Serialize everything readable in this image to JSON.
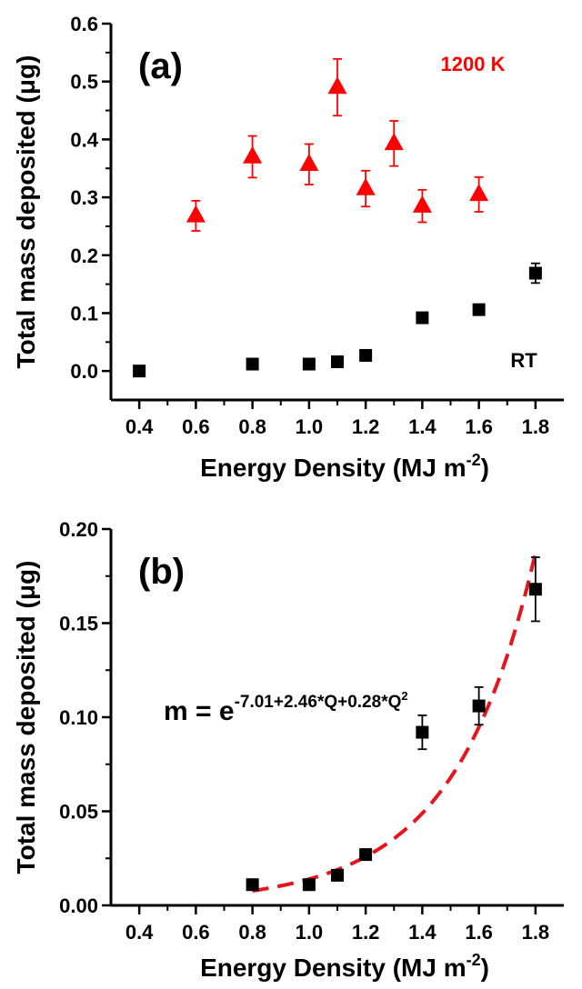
{
  "chart_data": [
    {
      "type": "scatter",
      "panel_label": "(a)",
      "xlabel": "Energy Density (MJ m",
      "xlabel_sup": "-2",
      "xlabel_end": ")",
      "ylabel": "Total mass deposited (μg)",
      "xlim": [
        0.3,
        1.9
      ],
      "ylim": [
        -0.05,
        0.6
      ],
      "xticks": [
        "0.4",
        "0.6",
        "0.8",
        "1.0",
        "1.2",
        "1.4",
        "1.6",
        "1.8"
      ],
      "yticks": [
        "0.0",
        "0.1",
        "0.2",
        "0.3",
        "0.4",
        "0.5",
        "0.6"
      ],
      "annotations": [
        {
          "text": "1200 K",
          "color": "#ff0000"
        },
        {
          "text": "RT",
          "color": "#000000"
        }
      ],
      "series": [
        {
          "name": "1200 K",
          "marker": "triangle",
          "color": "#ff0000",
          "x": [
            0.6,
            0.8,
            1.0,
            1.1,
            1.2,
            1.3,
            1.4,
            1.6
          ],
          "y": [
            0.268,
            0.37,
            0.357,
            0.49,
            0.315,
            0.393,
            0.285,
            0.305
          ],
          "err": [
            0.026,
            0.036,
            0.035,
            0.049,
            0.031,
            0.039,
            0.028,
            0.03
          ]
        },
        {
          "name": "RT",
          "marker": "square",
          "color": "#000000",
          "x": [
            0.4,
            0.8,
            1.0,
            1.1,
            1.2,
            1.4,
            1.6,
            1.8
          ],
          "y": [
            0.0,
            0.012,
            0.012,
            0.016,
            0.027,
            0.092,
            0.106,
            0.169
          ],
          "err": [
            0,
            0,
            0,
            0,
            0,
            0,
            0,
            0.017
          ]
        }
      ]
    },
    {
      "type": "scatter",
      "panel_label": "(b)",
      "xlabel": "Energy Density (MJ m",
      "xlabel_sup": "-2",
      "xlabel_end": ")",
      "ylabel": "Total mass deposited (μg)",
      "xlim": [
        0.3,
        1.9
      ],
      "ylim": [
        0.0,
        0.2
      ],
      "xticks": [
        "0.4",
        "0.6",
        "0.8",
        "1.0",
        "1.2",
        "1.4",
        "1.6",
        "1.8"
      ],
      "yticks": [
        "0.00",
        "0.05",
        "0.10",
        "0.15",
        "0.20"
      ],
      "equation": {
        "lhs": "m = e",
        "exponent": "-7.01+2.46*Q+0.28*Q",
        "exp2": "2"
      },
      "series": [
        {
          "name": "RT",
          "marker": "square",
          "color": "#000000",
          "x": [
            0.8,
            1.0,
            1.1,
            1.2,
            1.4,
            1.6,
            1.8
          ],
          "y": [
            0.011,
            0.011,
            0.016,
            0.027,
            0.092,
            0.106,
            0.168
          ],
          "err": [
            0.0015,
            0.0015,
            0.002,
            0.0025,
            0.009,
            0.01,
            0.017
          ]
        }
      ],
      "fit": {
        "color": "#e8141c",
        "style": "dashed",
        "x_range": [
          0.8,
          1.8
        ],
        "coefficients": [
          -7.01,
          2.46,
          0.28
        ]
      }
    }
  ]
}
